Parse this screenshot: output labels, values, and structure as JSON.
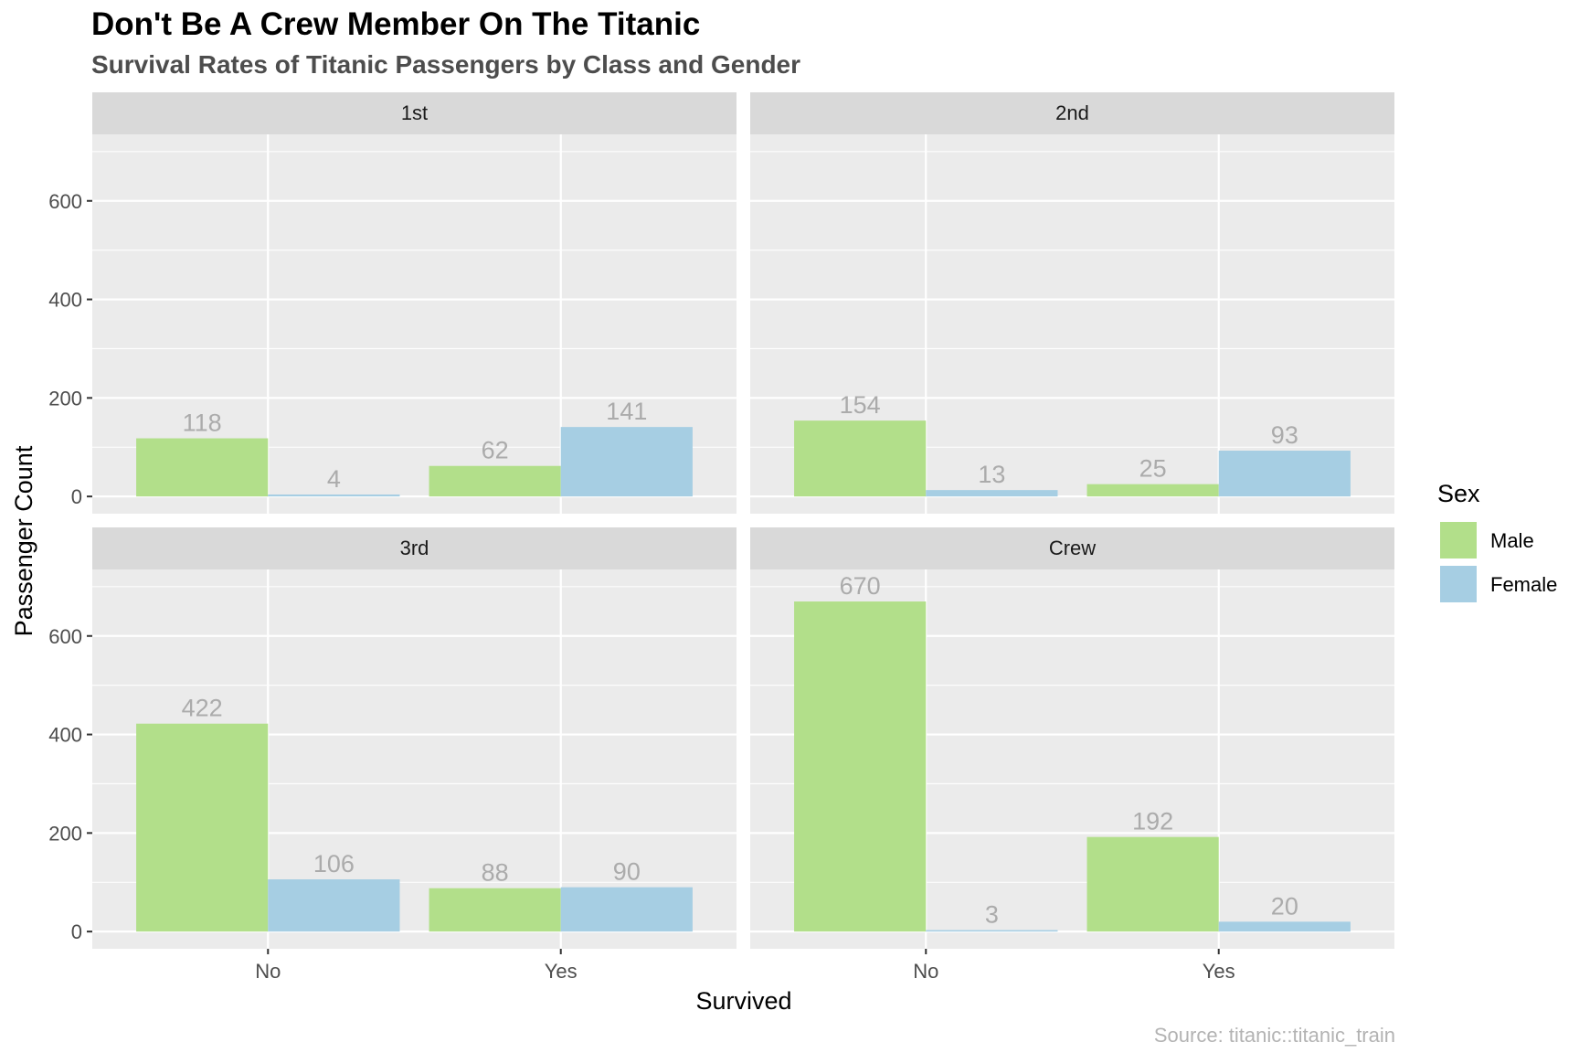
{
  "chart_data": {
    "type": "bar",
    "title": "Don't Be A Crew Member On The Titanic",
    "subtitle": "Survival Rates of Titanic Passengers by Class and Gender",
    "caption": "Source: titanic::titanic_train",
    "xlabel": "Survived",
    "ylabel": "Passenger Count",
    "categories": [
      "No",
      "Yes"
    ],
    "ylim": [
      0,
      700
    ],
    "yticks": [
      "0",
      "200",
      "400",
      "600"
    ],
    "legend": {
      "title": "Sex",
      "position": "right",
      "entries": [
        {
          "name": "Male",
          "color": "#b2df8a"
        },
        {
          "name": "Female",
          "color": "#a6cee3"
        }
      ]
    },
    "grid": true,
    "facets": [
      {
        "label": "1st",
        "series": [
          {
            "name": "Male",
            "values": [
              118,
              62
            ]
          },
          {
            "name": "Female",
            "values": [
              4,
              141
            ]
          }
        ]
      },
      {
        "label": "2nd",
        "series": [
          {
            "name": "Male",
            "values": [
              154,
              25
            ]
          },
          {
            "name": "Female",
            "values": [
              13,
              93
            ]
          }
        ]
      },
      {
        "label": "3rd",
        "series": [
          {
            "name": "Male",
            "values": [
              422,
              88
            ]
          },
          {
            "name": "Female",
            "values": [
              106,
              90
            ]
          }
        ]
      },
      {
        "label": "Crew",
        "series": [
          {
            "name": "Male",
            "values": [
              670,
              192
            ]
          },
          {
            "name": "Female",
            "values": [
              3,
              20
            ]
          }
        ]
      }
    ]
  }
}
